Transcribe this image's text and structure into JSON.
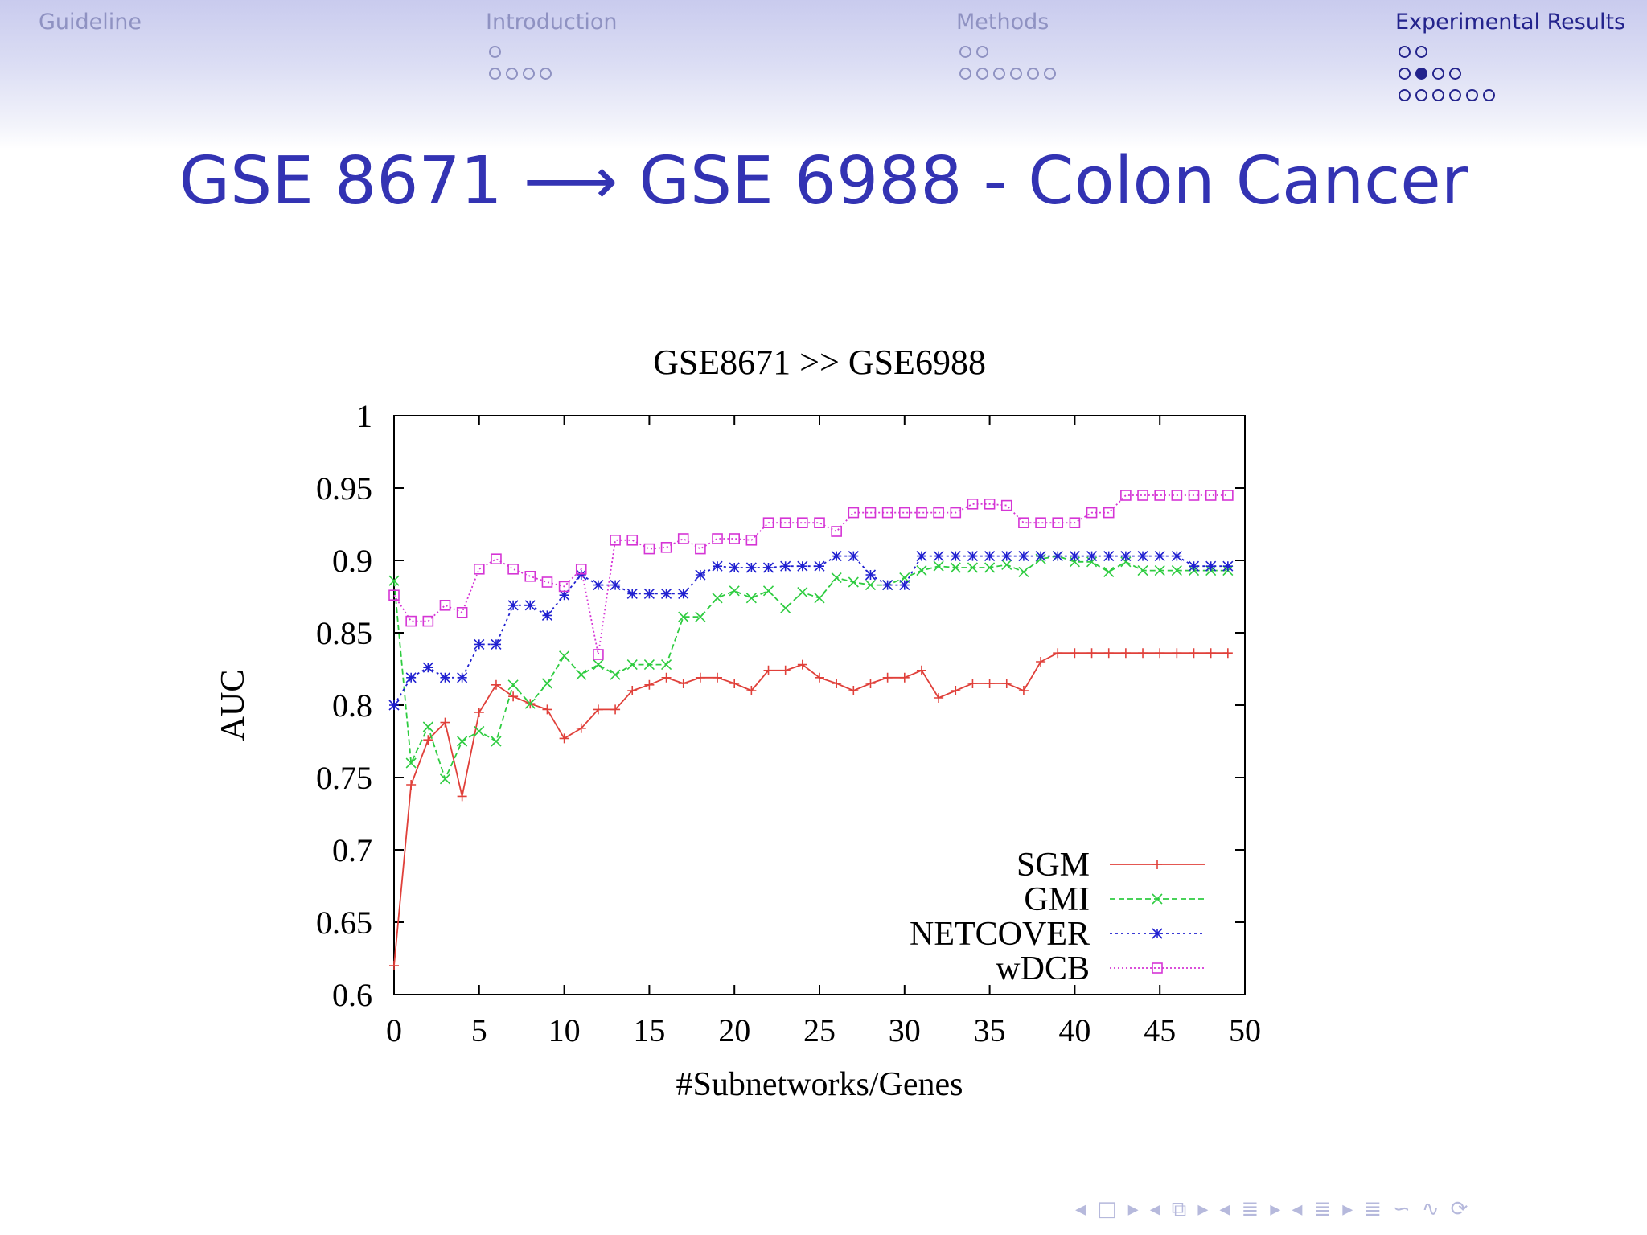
{
  "header": {
    "sections": [
      {
        "label": "Guideline",
        "active": false,
        "rows": []
      },
      {
        "label": "Introduction",
        "active": false,
        "rows": [
          [
            0
          ],
          [
            0,
            0,
            0,
            0
          ]
        ]
      },
      {
        "label": "Methods",
        "active": false,
        "rows": [
          [
            0,
            0
          ],
          [
            0,
            0,
            0,
            0,
            0,
            0
          ]
        ]
      },
      {
        "label": "Experimental Results",
        "active": true,
        "rows": [
          [
            0,
            0
          ],
          [
            0,
            2,
            0,
            0
          ],
          [
            0,
            0,
            0,
            0,
            0,
            0
          ]
        ]
      }
    ]
  },
  "slide": {
    "title": "GSE 8671 ⟶ GSE 6988 - Colon Cancer"
  },
  "chart_data": {
    "type": "line",
    "title": "GSE8671 >> GSE6988",
    "xlabel": "#Subnetworks/Genes",
    "ylabel": "AUC",
    "xlim": [
      0,
      50
    ],
    "ylim": [
      0.6,
      1
    ],
    "xticks": [
      0,
      5,
      10,
      15,
      20,
      25,
      30,
      35,
      40,
      45,
      50
    ],
    "yticks": [
      0.6,
      0.65,
      0.7,
      0.75,
      0.8,
      0.85,
      0.9,
      0.95,
      1
    ],
    "ytick_labels": [
      "0.6",
      "0.65",
      "0.7",
      "0.75",
      "0.8",
      "0.85",
      "0.9",
      "0.95",
      "1"
    ],
    "grid": false,
    "legend_position": "bottom-right",
    "x": [
      0,
      1,
      2,
      3,
      4,
      5,
      6,
      7,
      8,
      9,
      10,
      11,
      12,
      13,
      14,
      15,
      16,
      17,
      18,
      19,
      20,
      21,
      22,
      23,
      24,
      25,
      26,
      27,
      28,
      29,
      30,
      31,
      32,
      33,
      34,
      35,
      36,
      37,
      38,
      39,
      40,
      41,
      42,
      43,
      44,
      45,
      46,
      47,
      48,
      49
    ],
    "series": [
      {
        "name": "SGM",
        "color": "#e0403a",
        "marker": "plus",
        "dash": "",
        "values": [
          0.62,
          0.745,
          0.776,
          0.788,
          0.737,
          0.795,
          0.814,
          0.806,
          0.801,
          0.797,
          0.777,
          0.784,
          0.797,
          0.797,
          0.81,
          0.814,
          0.819,
          0.815,
          0.819,
          0.819,
          0.815,
          0.81,
          0.824,
          0.824,
          0.828,
          0.819,
          0.815,
          0.81,
          0.815,
          0.819,
          0.819,
          0.824,
          0.805,
          0.81,
          0.815,
          0.815,
          0.815,
          0.81,
          0.83,
          0.836,
          0.836,
          0.836,
          0.836,
          0.836,
          0.836,
          0.836,
          0.836,
          0.836,
          0.836,
          0.836
        ]
      },
      {
        "name": "GMI",
        "color": "#2ecc40",
        "marker": "x",
        "dash": "7,4",
        "values": [
          0.886,
          0.76,
          0.785,
          0.749,
          0.775,
          0.782,
          0.775,
          0.814,
          0.801,
          0.815,
          0.834,
          0.821,
          0.828,
          0.821,
          0.828,
          0.828,
          0.828,
          0.861,
          0.861,
          0.874,
          0.879,
          0.874,
          0.879,
          0.867,
          0.878,
          0.874,
          0.888,
          0.885,
          0.883,
          0.883,
          0.888,
          0.893,
          0.896,
          0.895,
          0.895,
          0.895,
          0.897,
          0.892,
          0.901,
          0.903,
          0.899,
          0.899,
          0.892,
          0.899,
          0.893,
          0.893,
          0.893,
          0.893,
          0.893,
          0.893
        ]
      },
      {
        "name": "NETCOVER",
        "color": "#2020d0",
        "marker": "star",
        "dash": "3,4",
        "values": [
          0.8,
          0.819,
          0.826,
          0.819,
          0.819,
          0.842,
          0.842,
          0.869,
          0.869,
          0.862,
          0.876,
          0.89,
          0.883,
          0.883,
          0.877,
          0.877,
          0.877,
          0.877,
          0.89,
          0.896,
          0.895,
          0.895,
          0.895,
          0.896,
          0.896,
          0.896,
          0.903,
          0.903,
          0.89,
          0.883,
          0.883,
          0.903,
          0.903,
          0.903,
          0.903,
          0.903,
          0.903,
          0.903,
          0.903,
          0.903,
          0.903,
          0.903,
          0.903,
          0.903,
          0.903,
          0.903,
          0.903,
          0.896,
          0.896,
          0.896
        ]
      },
      {
        "name": "wDCB",
        "color": "#d535d5",
        "marker": "box",
        "dash": "2,3",
        "values": [
          0.876,
          0.858,
          0.858,
          0.869,
          0.864,
          0.894,
          0.901,
          0.894,
          0.889,
          0.885,
          0.882,
          0.894,
          0.835,
          0.914,
          0.914,
          0.908,
          0.909,
          0.915,
          0.908,
          0.915,
          0.915,
          0.914,
          0.926,
          0.926,
          0.926,
          0.926,
          0.92,
          0.933,
          0.933,
          0.933,
          0.933,
          0.933,
          0.933,
          0.933,
          0.939,
          0.939,
          0.938,
          0.926,
          0.926,
          0.926,
          0.926,
          0.933,
          0.933,
          0.945,
          0.945,
          0.945,
          0.945,
          0.945,
          0.945,
          0.945
        ]
      }
    ]
  },
  "nav_icons": [
    "◂",
    "□",
    "▸",
    "◂",
    "⧉",
    "▸",
    "◂",
    "≣",
    "▸",
    "◂",
    "≣",
    "▸",
    "≣",
    "∽",
    "∿",
    "⟳"
  ]
}
